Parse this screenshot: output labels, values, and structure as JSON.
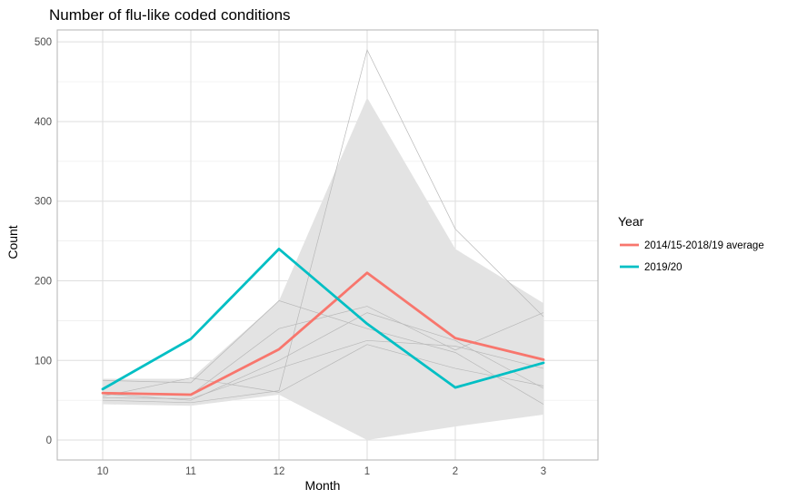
{
  "chart_data": {
    "type": "line",
    "title": "Number of flu-like coded conditions",
    "xlabel": "Month",
    "ylabel": "Count",
    "categories": [
      "10",
      "11",
      "12",
      "1",
      "2",
      "3"
    ],
    "ylim": [
      -25,
      515
    ],
    "yticks": [
      0,
      100,
      200,
      300,
      400,
      500
    ],
    "grid": true,
    "ribbon": {
      "lower": [
        45,
        43,
        57,
        0,
        17,
        32
      ],
      "upper": [
        77,
        77,
        175,
        430,
        240,
        172
      ],
      "color": "#e3e3e3"
    },
    "background_series": [
      {
        "values": [
          50,
          47,
          62,
          490,
          265,
          155
        ]
      },
      {
        "values": [
          53,
          52,
          90,
          125,
          118,
          90
        ]
      },
      {
        "values": [
          60,
          57,
          140,
          168,
          113,
          160
        ]
      },
      {
        "values": [
          75,
          72,
          175,
          140,
          110,
          45
        ]
      },
      {
        "values": [
          58,
          50,
          100,
          160,
          125,
          65
        ]
      },
      {
        "values": [
          55,
          78,
          60,
          120,
          90,
          68
        ]
      }
    ],
    "background_color": "#b8b8b8",
    "series": [
      {
        "name": "2014/15-2018/19 average",
        "values": [
          59,
          57,
          114,
          210,
          128,
          101
        ],
        "color": "#f8766d"
      },
      {
        "name": "2019/20",
        "values": [
          64,
          127,
          240,
          146,
          66,
          97
        ],
        "color": "#00bfc4"
      }
    ],
    "legend": {
      "title": "Year",
      "placement": "right"
    }
  }
}
